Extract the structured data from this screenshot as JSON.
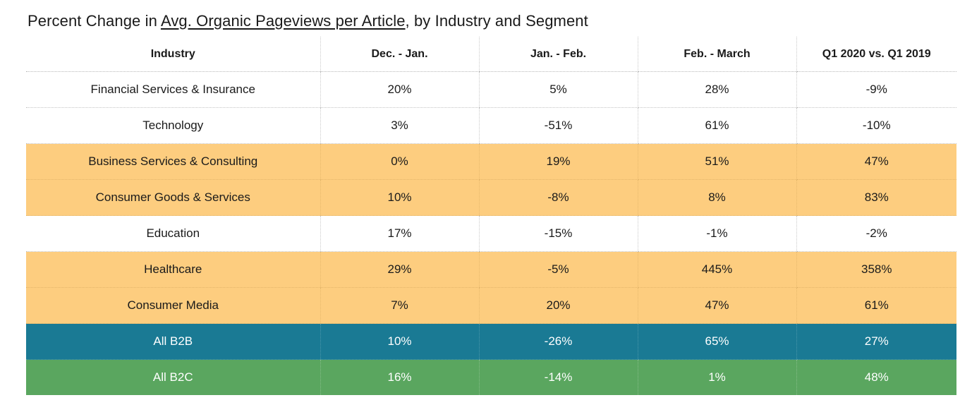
{
  "chart_data": {
    "type": "table",
    "title": {
      "prefix": "Percent Change in ",
      "metric": "Avg. Organic Pageviews per Article",
      "suffix": ", by Industry and Segment"
    },
    "columns": [
      "Industry",
      "Dec. - Jan.",
      "Jan. - Feb.",
      "Feb. - March",
      "Q1 2020 vs. Q1 2019"
    ],
    "rows": [
      {
        "industry": "Financial Services & Insurance",
        "values": [
          "20%",
          "5%",
          "28%",
          "-9%"
        ],
        "highlight": "none"
      },
      {
        "industry": "Technology",
        "values": [
          "3%",
          "-51%",
          "61%",
          "-10%"
        ],
        "highlight": "none"
      },
      {
        "industry": "Business Services & Consulting",
        "values": [
          "0%",
          "19%",
          "51%",
          "47%"
        ],
        "highlight": "orange"
      },
      {
        "industry": "Consumer Goods & Services",
        "values": [
          "10%",
          "-8%",
          "8%",
          "83%"
        ],
        "highlight": "orange"
      },
      {
        "industry": "Education",
        "values": [
          "17%",
          "-15%",
          "-1%",
          "-2%"
        ],
        "highlight": "none"
      },
      {
        "industry": "Healthcare",
        "values": [
          "29%",
          "-5%",
          "445%",
          "358%"
        ],
        "highlight": "orange"
      },
      {
        "industry": "Consumer Media",
        "values": [
          "7%",
          "20%",
          "47%",
          "61%"
        ],
        "highlight": "orange"
      },
      {
        "industry": "All B2B",
        "values": [
          "10%",
          "-26%",
          "65%",
          "27%"
        ],
        "highlight": "teal"
      },
      {
        "industry": "All B2C",
        "values": [
          "16%",
          "-14%",
          "1%",
          "48%"
        ],
        "highlight": "green"
      }
    ],
    "colors": {
      "orange": "#fdcd7f",
      "teal": "#1a7a94",
      "green": "#5aa65f"
    }
  }
}
